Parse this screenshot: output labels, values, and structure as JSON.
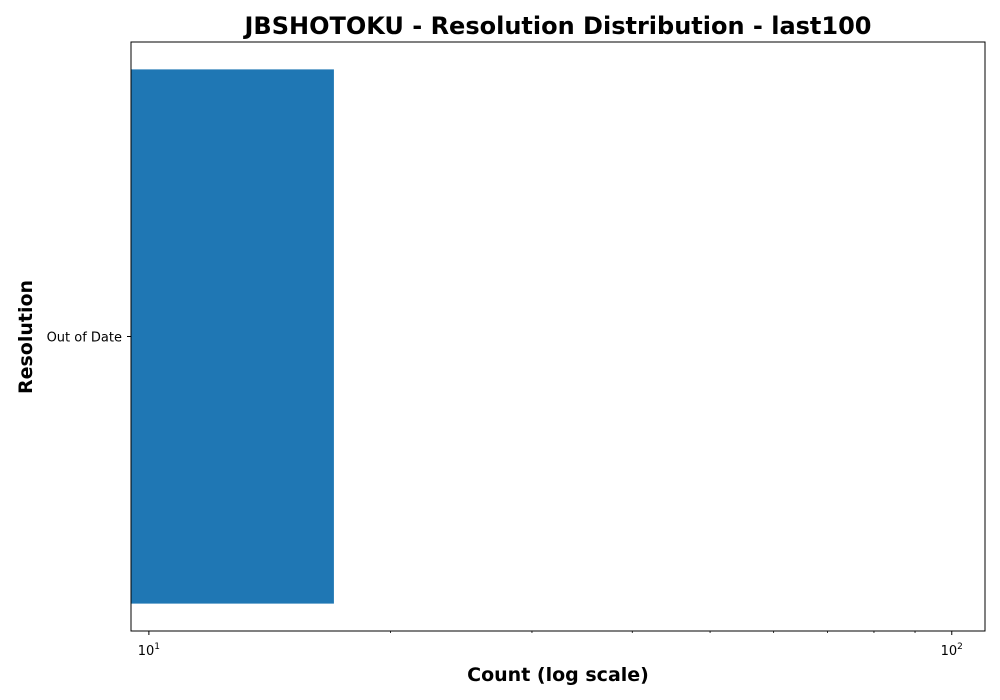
{
  "chart_data": {
    "type": "bar",
    "orientation": "horizontal",
    "title": "JBSHOTOKU - Resolution Distribution - last100",
    "xlabel": "Count (log scale)",
    "ylabel": "Resolution",
    "x_scale": "log",
    "xlim": [
      9.5,
      110
    ],
    "categories": [
      "Out of Date"
    ],
    "values": [
      17
    ],
    "x_ticks": [
      {
        "value": 10,
        "base": "10",
        "exp": "1"
      },
      {
        "value": 100,
        "base": "10",
        "exp": "2"
      }
    ],
    "grid": false,
    "legend": "none",
    "colors": {
      "bar": "#1f77b4",
      "axis": "#000000",
      "background": "#ffffff"
    }
  }
}
